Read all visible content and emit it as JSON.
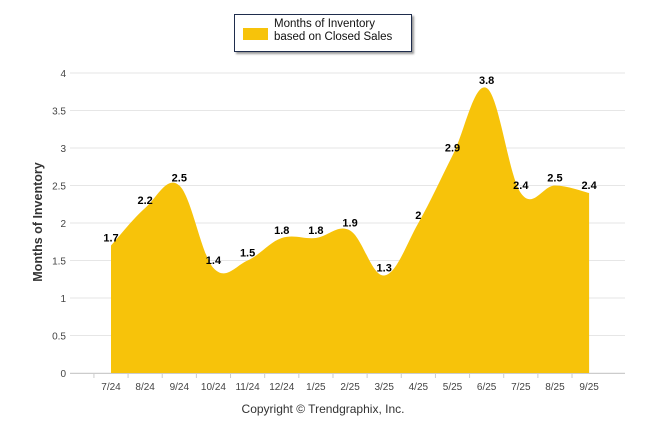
{
  "chart_data": {
    "type": "area",
    "title": "",
    "xlabel": "",
    "ylabel": "Months of Inventory",
    "categories": [
      "7/24",
      "8/24",
      "9/24",
      "10/24",
      "11/24",
      "12/24",
      "1/25",
      "2/25",
      "3/25",
      "4/25",
      "5/25",
      "6/25",
      "7/25",
      "8/25",
      "9/25"
    ],
    "series": [
      {
        "name": "Months of Inventory based on Closed Sales",
        "values": [
          1.7,
          2.2,
          2.5,
          1.4,
          1.5,
          1.8,
          1.8,
          1.9,
          1.3,
          2,
          2.9,
          3.8,
          2.4,
          2.5,
          2.4
        ],
        "color": "#f7c30a"
      }
    ],
    "ylim": [
      0,
      4
    ],
    "yticks": [
      "0",
      "0.5",
      "1",
      "1.5",
      "2",
      "2.5",
      "3",
      "3.5",
      "4"
    ],
    "grid": true,
    "legend_position": "top-center"
  },
  "legend": {
    "label": "Months of Inventory based on Closed Sales"
  },
  "footer": "Copyright © Trendgraphix, Inc."
}
